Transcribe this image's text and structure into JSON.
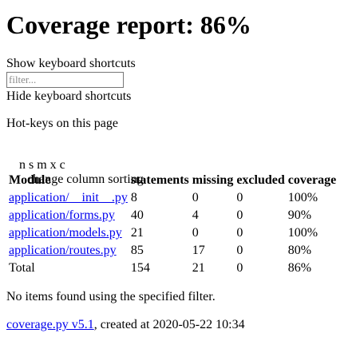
{
  "header": {
    "title": "Coverage report: 86%"
  },
  "shortcuts": {
    "show_label": "Show keyboard shortcuts",
    "filter_placeholder": "filter...",
    "hide_label": "Hide keyboard shortcuts",
    "hotkeys_title": "Hot-keys on this page",
    "keys": "n s m x c",
    "keys_desc": "change column sorting"
  },
  "table": {
    "headers": [
      "Module",
      "statements",
      "missing",
      "excluded",
      "coverage"
    ],
    "rows": [
      {
        "module": "application/__init__.py",
        "statements": "8",
        "missing": "0",
        "excluded": "0",
        "coverage": "100%"
      },
      {
        "module": "application/forms.py",
        "statements": "40",
        "missing": "4",
        "excluded": "0",
        "coverage": "90%"
      },
      {
        "module": "application/models.py",
        "statements": "21",
        "missing": "0",
        "excluded": "0",
        "coverage": "100%"
      },
      {
        "module": "application/routes.py",
        "statements": "85",
        "missing": "17",
        "excluded": "0",
        "coverage": "80%"
      }
    ],
    "total": {
      "module": "Total",
      "statements": "154",
      "missing": "21",
      "excluded": "0",
      "coverage": "86%"
    }
  },
  "empty_message": "No items found using the specified filter.",
  "footer": {
    "link_text": "coverage.py v5.1",
    "created_text": ", created at 2020-05-22 10:34"
  }
}
